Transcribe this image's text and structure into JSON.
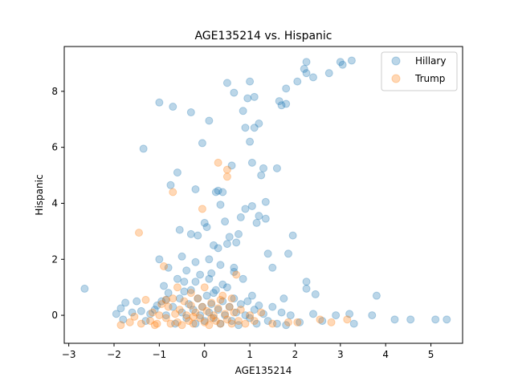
{
  "chart_data": {
    "type": "scatter",
    "title": "AGE135214 vs. Hispanic",
    "xlabel": "AGE135214",
    "ylabel": "Hispanic",
    "xlim": [
      -3.1,
      5.7
    ],
    "ylim": [
      -1.0,
      9.6
    ],
    "xticks": [
      -3,
      -2,
      -1,
      0,
      1,
      2,
      3,
      4,
      5
    ],
    "yticks": [
      0,
      2,
      4,
      6,
      8
    ],
    "grid": false,
    "legend_position": "top-right",
    "series": [
      {
        "name": "Hillary",
        "color": "#1f77b4",
        "points": [
          [
            -2.65,
            0.95
          ],
          [
            -1.95,
            0.05
          ],
          [
            -1.85,
            0.25
          ],
          [
            -1.75,
            0.45
          ],
          [
            -1.8,
            -0.15
          ],
          [
            -1.6,
            0.1
          ],
          [
            -1.5,
            0.5
          ],
          [
            -1.4,
            0.15
          ],
          [
            -1.35,
            5.95
          ],
          [
            -1.2,
            0.05
          ],
          [
            -1.05,
            0.35
          ],
          [
            -1.0,
            7.6
          ],
          [
            -1.0,
            2.0
          ],
          [
            -0.9,
            1.05
          ],
          [
            -0.85,
            0.55
          ],
          [
            -0.8,
            1.7
          ],
          [
            -0.75,
            4.65
          ],
          [
            -0.7,
            7.45
          ],
          [
            -0.6,
            5.1
          ],
          [
            -0.55,
            3.05
          ],
          [
            -0.5,
            2.1
          ],
          [
            -0.45,
            0.85
          ],
          [
            -0.4,
            1.6
          ],
          [
            -0.3,
            7.25
          ],
          [
            -0.3,
            2.9
          ],
          [
            -0.2,
            4.5
          ],
          [
            -0.2,
            1.2
          ],
          [
            -0.15,
            2.85
          ],
          [
            -0.1,
            1.45
          ],
          [
            -0.05,
            6.15
          ],
          [
            0.0,
            3.3
          ],
          [
            0.05,
            3.15
          ],
          [
            0.1,
            6.95
          ],
          [
            0.1,
            2.0
          ],
          [
            0.15,
            1.5
          ],
          [
            0.2,
            2.5
          ],
          [
            0.25,
            4.4
          ],
          [
            0.3,
            4.45
          ],
          [
            0.3,
            2.4
          ],
          [
            0.35,
            3.95
          ],
          [
            0.35,
            1.8
          ],
          [
            0.4,
            4.4
          ],
          [
            0.45,
            3.35
          ],
          [
            0.5,
            8.3
          ],
          [
            0.5,
            2.55
          ],
          [
            0.55,
            2.8
          ],
          [
            0.6,
            5.35
          ],
          [
            0.65,
            7.95
          ],
          [
            0.65,
            1.7
          ],
          [
            0.7,
            2.6
          ],
          [
            0.75,
            2.9
          ],
          [
            0.8,
            3.5
          ],
          [
            0.85,
            7.3
          ],
          [
            0.9,
            3.8
          ],
          [
            0.9,
            6.7
          ],
          [
            0.95,
            7.75
          ],
          [
            1.0,
            8.35
          ],
          [
            1.0,
            6.2
          ],
          [
            1.05,
            5.45
          ],
          [
            1.05,
            3.9
          ],
          [
            1.1,
            7.8
          ],
          [
            1.1,
            6.7
          ],
          [
            1.15,
            3.3
          ],
          [
            1.2,
            6.85
          ],
          [
            1.2,
            3.55
          ],
          [
            1.25,
            5.0
          ],
          [
            1.3,
            5.25
          ],
          [
            1.35,
            4.05
          ],
          [
            1.35,
            3.45
          ],
          [
            1.4,
            2.2
          ],
          [
            1.5,
            1.7
          ],
          [
            1.6,
            5.25
          ],
          [
            1.65,
            7.65
          ],
          [
            1.7,
            7.5
          ],
          [
            1.75,
            0.6
          ],
          [
            1.8,
            8.1
          ],
          [
            1.8,
            7.55
          ],
          [
            1.85,
            2.2
          ],
          [
            1.95,
            2.85
          ],
          [
            2.05,
            8.35
          ],
          [
            2.2,
            8.8
          ],
          [
            2.25,
            9.05
          ],
          [
            2.25,
            8.65
          ],
          [
            2.4,
            8.5
          ],
          [
            2.25,
            1.2
          ],
          [
            2.25,
            0.95
          ],
          [
            2.45,
            0.75
          ],
          [
            2.75,
            8.65
          ],
          [
            3.0,
            9.05
          ],
          [
            3.05,
            8.95
          ],
          [
            3.25,
            9.1
          ],
          [
            3.2,
            0.05
          ],
          [
            3.3,
            -0.3
          ],
          [
            3.7,
            0.0
          ],
          [
            3.8,
            0.7
          ],
          [
            4.2,
            -0.15
          ],
          [
            4.55,
            -0.15
          ],
          [
            5.1,
            -0.15
          ],
          [
            5.35,
            -0.15
          ],
          [
            -1.3,
            -0.2
          ],
          [
            -1.1,
            0.2
          ],
          [
            -0.95,
            0.5
          ],
          [
            -0.85,
            0.0
          ],
          [
            -0.7,
            0.3
          ],
          [
            -0.65,
            -0.3
          ],
          [
            -0.55,
            0.6
          ],
          [
            -0.5,
            0.1
          ],
          [
            -0.4,
            -0.1
          ],
          [
            -0.35,
            0.4
          ],
          [
            -0.3,
            0.9
          ],
          [
            -0.25,
            0.2
          ],
          [
            -0.2,
            -0.3
          ],
          [
            -0.15,
            0.6
          ],
          [
            -0.1,
            0.0
          ],
          [
            -0.05,
            0.3
          ],
          [
            0.0,
            -0.2
          ],
          [
            0.05,
            0.7
          ],
          [
            0.1,
            0.1
          ],
          [
            0.15,
            0.4
          ],
          [
            0.2,
            -0.1
          ],
          [
            0.25,
            0.9
          ],
          [
            0.3,
            0.2
          ],
          [
            0.35,
            -0.3
          ],
          [
            0.4,
            0.5
          ],
          [
            0.45,
            0.0
          ],
          [
            0.5,
            1.0
          ],
          [
            0.55,
            0.3
          ],
          [
            0.6,
            -0.2
          ],
          [
            0.65,
            0.6
          ],
          [
            0.7,
            0.1
          ],
          [
            0.75,
            -0.35
          ],
          [
            0.8,
            0.4
          ],
          [
            0.85,
            1.3
          ],
          [
            0.9,
            0.0
          ],
          [
            0.95,
            0.5
          ],
          [
            1.0,
            -0.1
          ],
          [
            1.05,
            0.7
          ],
          [
            1.1,
            0.2
          ],
          [
            1.15,
            -0.3
          ],
          [
            1.2,
            0.35
          ],
          [
            1.3,
            0.05
          ],
          [
            1.4,
            -0.2
          ],
          [
            1.5,
            0.3
          ],
          [
            1.6,
            -0.3
          ],
          [
            1.7,
            0.1
          ],
          [
            1.8,
            -0.35
          ],
          [
            1.9,
            0.0
          ],
          [
            2.1,
            -0.25
          ],
          [
            2.4,
            0.05
          ],
          [
            2.6,
            -0.2
          ],
          [
            2.9,
            0.0
          ],
          [
            -0.6,
            1.3
          ],
          [
            -0.2,
            1.9
          ],
          [
            0.1,
            1.3
          ],
          [
            0.4,
            1.1
          ],
          [
            0.65,
            1.55
          ],
          [
            -0.45,
            1.2
          ],
          [
            0.2,
            0.8
          ],
          [
            -0.8,
            0.8
          ]
        ]
      },
      {
        "name": "Trump",
        "color": "#ff7f0e",
        "points": [
          [
            -1.85,
            -0.35
          ],
          [
            -1.65,
            -0.25
          ],
          [
            -1.55,
            -0.05
          ],
          [
            -1.45,
            2.95
          ],
          [
            -1.4,
            -0.3
          ],
          [
            -1.3,
            0.55
          ],
          [
            -1.2,
            -0.2
          ],
          [
            -1.15,
            0.1
          ],
          [
            -1.1,
            -0.35
          ],
          [
            -1.0,
            0.0
          ],
          [
            -0.9,
            1.75
          ],
          [
            -0.95,
            0.4
          ],
          [
            -0.85,
            -0.1
          ],
          [
            -0.8,
            0.3
          ],
          [
            -0.75,
            -0.3
          ],
          [
            -0.7,
            4.4
          ],
          [
            -0.7,
            0.6
          ],
          [
            -0.65,
            0.05
          ],
          [
            -0.6,
            -0.25
          ],
          [
            -0.55,
            0.2
          ],
          [
            -0.5,
            -0.35
          ],
          [
            -0.45,
            0.5
          ],
          [
            -0.4,
            0.0
          ],
          [
            -0.35,
            -0.2
          ],
          [
            -0.3,
            0.35
          ],
          [
            -0.25,
            -0.3
          ],
          [
            -0.2,
            0.1
          ],
          [
            -0.15,
            0.6
          ],
          [
            -0.1,
            -0.1
          ],
          [
            -0.05,
            3.8
          ],
          [
            -0.05,
            0.3
          ],
          [
            0.0,
            -0.25
          ],
          [
            0.05,
            0.15
          ],
          [
            0.1,
            -0.35
          ],
          [
            0.15,
            0.45
          ],
          [
            0.2,
            0.0
          ],
          [
            0.25,
            -0.2
          ],
          [
            0.3,
            5.45
          ],
          [
            0.3,
            0.25
          ],
          [
            0.35,
            -0.3
          ],
          [
            0.4,
            0.7
          ],
          [
            0.45,
            0.05
          ],
          [
            0.5,
            5.2
          ],
          [
            0.5,
            4.95
          ],
          [
            0.5,
            -0.15
          ],
          [
            0.55,
            0.3
          ],
          [
            0.6,
            -0.3
          ],
          [
            0.65,
            0.1
          ],
          [
            0.7,
            1.45
          ],
          [
            0.75,
            -0.2
          ],
          [
            0.8,
            0.2
          ],
          [
            0.9,
            -0.3
          ],
          [
            1.0,
            0.0
          ],
          [
            1.1,
            -0.2
          ],
          [
            1.25,
            0.1
          ],
          [
            1.5,
            -0.3
          ],
          [
            1.85,
            -0.25
          ],
          [
            2.05,
            -0.25
          ],
          [
            2.55,
            -0.15
          ],
          [
            2.8,
            -0.25
          ],
          [
            3.15,
            -0.15
          ],
          [
            -0.6,
            1.0
          ],
          [
            -0.3,
            0.8
          ],
          [
            0.0,
            1.0
          ],
          [
            -1.05,
            -0.3
          ],
          [
            -0.85,
            0.55
          ],
          [
            -0.25,
            -0.05
          ],
          [
            0.15,
            -0.1
          ],
          [
            0.35,
            0.55
          ],
          [
            0.6,
            0.6
          ]
        ]
      }
    ]
  }
}
